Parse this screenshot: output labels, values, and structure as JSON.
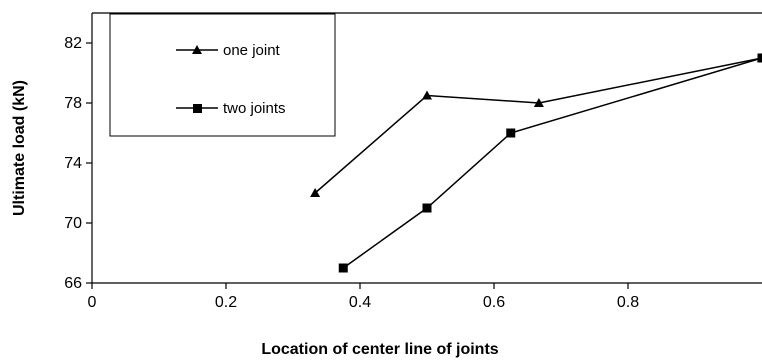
{
  "chart_data": {
    "type": "line",
    "xlabel": "Location of center line of joints",
    "ylabel": "Ultimate load (kN)",
    "xlim": [
      0,
      1.0
    ],
    "ylim": [
      66,
      84
    ],
    "xticks": [
      0,
      0.2,
      0.4,
      0.6,
      0.8
    ],
    "xtick_labels": [
      "0",
      "0.2",
      "0.4",
      "0.6",
      "0.8"
    ],
    "yticks": [
      66,
      70,
      74,
      78,
      82
    ],
    "ytick_labels": [
      "66",
      "70",
      "74",
      "78",
      "82"
    ],
    "grid": false,
    "legend_position": "top-left",
    "series": [
      {
        "name": "one joint",
        "marker": "triangle",
        "color": "#000000",
        "x": [
          0.333,
          0.5,
          0.667,
          1.0
        ],
        "y": [
          72,
          78.5,
          78,
          81
        ]
      },
      {
        "name": "two joints",
        "marker": "square",
        "color": "#000000",
        "x": [
          0.375,
          0.5,
          0.625,
          1.0
        ],
        "y": [
          67,
          71,
          76,
          81
        ]
      }
    ]
  }
}
